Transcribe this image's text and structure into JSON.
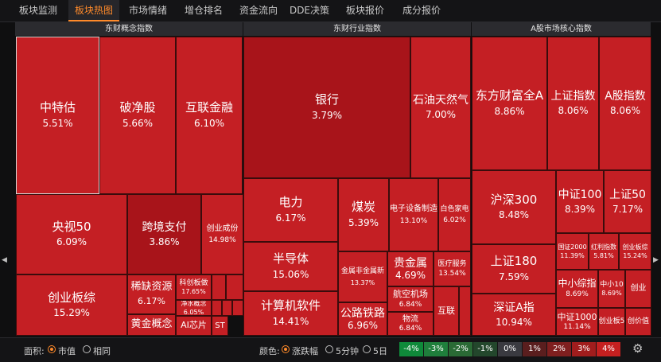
{
  "tabs": [
    "板块监测",
    "板块热图",
    "市场情绪",
    "增仓排名",
    "资金流向",
    "DDE决策",
    "板块报价",
    "成分报价"
  ],
  "active_tab": 1,
  "panels": [
    "东财概念指数",
    "东财行业指数",
    "A股市场核心指数"
  ],
  "tiles": [
    {
      "name": "中特估",
      "pct": "5.51%",
      "shade": 2,
      "selected": true
    },
    {
      "name": "破净股",
      "pct": "5.66%",
      "shade": 2
    },
    {
      "name": "互联金融",
      "pct": "6.10%",
      "shade": 2
    },
    {
      "name": "央视50",
      "pct": "6.09%",
      "shade": 2
    },
    {
      "name": "跨境支付",
      "pct": "3.86%",
      "shade": 1
    },
    {
      "name": "创业成份",
      "pct": "14.98%",
      "shade": 2
    },
    {
      "name": "创业板综",
      "pct": "15.29%",
      "shade": 2
    },
    {
      "name": "稀缺资源",
      "pct": "6.17%",
      "shade": 2
    },
    {
      "name": "科创板做",
      "pct": "17.65%",
      "shade": 2
    },
    {
      "name": "净水概念",
      "pct": "6.05%",
      "shade": 2
    },
    {
      "name": "黄金概念",
      "pct": "",
      "shade": 2
    },
    {
      "name": "AI芯片",
      "pct": "",
      "shade": 2
    },
    {
      "name": "ST",
      "pct": "",
      "shade": 2
    },
    {
      "name": "",
      "pct": "",
      "shade": 2
    },
    {
      "name": "",
      "pct": "",
      "shade": 2
    },
    {
      "name": "",
      "pct": "",
      "shade": 2
    },
    {
      "name": "",
      "pct": "",
      "shade": 2
    },
    {
      "name": "",
      "pct": "",
      "shade": 2
    },
    {
      "name": "银行",
      "pct": "3.79%",
      "shade": 1
    },
    {
      "name": "石油天然气",
      "pct": "7.00%",
      "shade": 2
    },
    {
      "name": "电力",
      "pct": "6.17%",
      "shade": 2
    },
    {
      "name": "半导体",
      "pct": "15.06%",
      "shade": 2
    },
    {
      "name": "计算机软件",
      "pct": "14.41%",
      "shade": 2
    },
    {
      "name": "煤炭",
      "pct": "5.39%",
      "shade": 2
    },
    {
      "name": "电子设备制造",
      "pct": "13.10%",
      "shade": 2
    },
    {
      "name": "白色家电",
      "pct": "6.02%",
      "shade": 2
    },
    {
      "name": "金属非金属新",
      "pct": "13.37%",
      "shade": 2
    },
    {
      "name": "贵金属",
      "pct": "4.69%",
      "shade": 2
    },
    {
      "name": "医疗服务",
      "pct": "13.54%",
      "shade": 2
    },
    {
      "name": "航空机场",
      "pct": "6.84%",
      "shade": 2
    },
    {
      "name": "公路铁路",
      "pct": "6.96%",
      "shade": 2
    },
    {
      "name": "物流",
      "pct": "6.84%",
      "shade": 2
    },
    {
      "name": "互联",
      "pct": "",
      "shade": 2
    },
    {
      "name": "",
      "pct": "",
      "shade": 2
    },
    {
      "name": "东方财富全A",
      "pct": "8.86%",
      "shade": 2
    },
    {
      "name": "上证指数",
      "pct": "8.06%",
      "shade": 2
    },
    {
      "name": "A股指数",
      "pct": "8.06%",
      "shade": 2
    },
    {
      "name": "沪深300",
      "pct": "8.48%",
      "shade": 2
    },
    {
      "name": "中证100",
      "pct": "8.39%",
      "shade": 2
    },
    {
      "name": "上证50",
      "pct": "7.17%",
      "shade": 2
    },
    {
      "name": "国证2000",
      "pct": "11.39%",
      "shade": 2
    },
    {
      "name": "红利指数",
      "pct": "5.81%",
      "shade": 2
    },
    {
      "name": "创业板综",
      "pct": "15.24%",
      "shade": 2
    },
    {
      "name": "上证180",
      "pct": "7.59%",
      "shade": 2
    },
    {
      "name": "中小综指",
      "pct": "8.69%",
      "shade": 2
    },
    {
      "name": "中小10",
      "pct": "8.69%",
      "shade": 2
    },
    {
      "name": "创业",
      "pct": "",
      "shade": 2
    },
    {
      "name": "深证A指",
      "pct": "10.94%",
      "shade": 2
    },
    {
      "name": "中证1000",
      "pct": "11.14%",
      "shade": 2
    },
    {
      "name": "创业板5",
      "pct": "",
      "shade": 2
    },
    {
      "name": "创价值",
      "pct": "",
      "shade": 2
    }
  ],
  "footer": {
    "area_label": "面积:",
    "area_options": [
      "市值",
      "相同"
    ],
    "area_selected": 0,
    "color_label": "颜色:",
    "color_options": [
      "涨跌幅",
      "5分钟",
      "5日"
    ],
    "color_selected": 0,
    "legend": [
      {
        "label": "-4%",
        "color": "#0f8a3a"
      },
      {
        "label": "-3%",
        "color": "#1f7f3c"
      },
      {
        "label": "-2%",
        "color": "#2a6a35"
      },
      {
        "label": "-1%",
        "color": "#23472c"
      },
      {
        "label": "0%",
        "color": "#3a3a40"
      },
      {
        "label": "1%",
        "color": "#5a1e1e"
      },
      {
        "label": "2%",
        "color": "#7f1f1f"
      },
      {
        "label": "3%",
        "color": "#a11d1d"
      },
      {
        "label": "4%",
        "color": "#c42020"
      }
    ]
  },
  "colors": {
    "tile_main": "#c41f24",
    "tile_dark": "#a8141a",
    "accent": "#ff8a2a"
  },
  "icons": {
    "gear": "gear-icon",
    "left_arrow": "scroll-left-icon",
    "right_arrow": "scroll-right-icon"
  }
}
